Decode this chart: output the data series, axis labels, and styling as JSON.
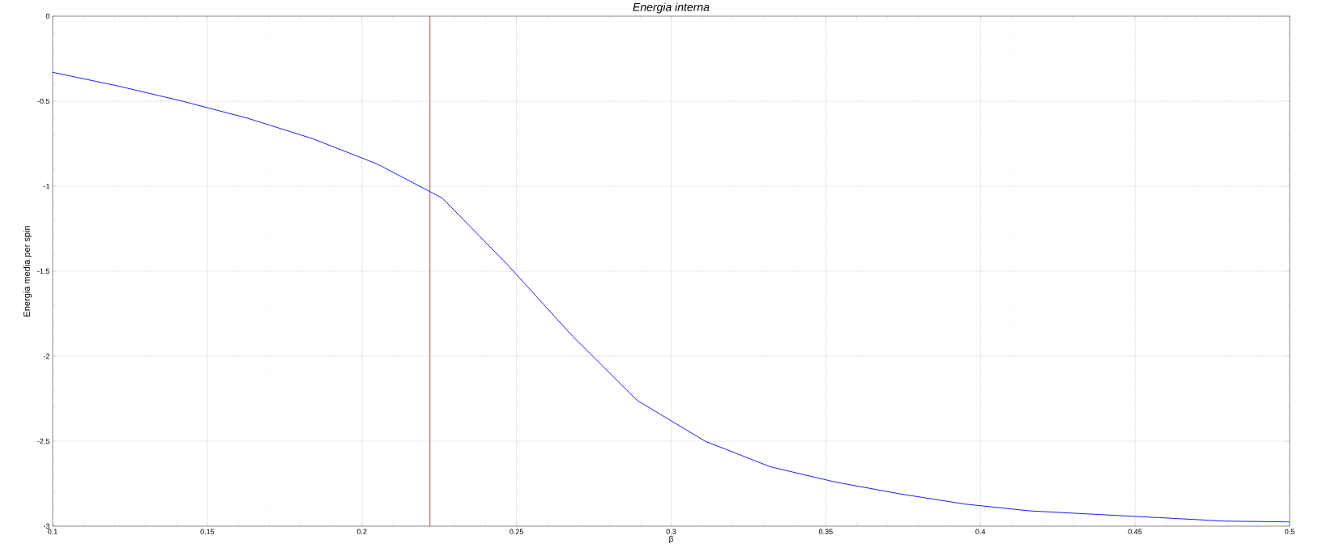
{
  "chart_data": {
    "type": "line",
    "title": "Energia interna",
    "xlabel": "β",
    "ylabel": "Energia media per spin",
    "x": [
      0.1,
      0.121,
      0.142,
      0.163,
      0.184,
      0.205,
      0.226,
      0.247,
      0.268,
      0.289,
      0.311,
      0.332,
      0.353,
      0.374,
      0.395,
      0.416,
      0.437,
      0.458,
      0.479,
      0.5
    ],
    "series": [
      {
        "color": "#0000ff",
        "values": [
          -0.33,
          -0.41,
          -0.5,
          -0.6,
          -0.72,
          -0.87,
          -1.07,
          -1.46,
          -1.88,
          -2.26,
          -2.5,
          -2.65,
          -2.74,
          -2.81,
          -2.87,
          -2.91,
          -2.93,
          -2.95,
          -2.97,
          -2.975
        ]
      }
    ],
    "xlim": [
      0.1,
      0.5
    ],
    "xticks": [
      0.1,
      0.15,
      0.2,
      0.25,
      0.3,
      0.35,
      0.4,
      0.45,
      0.5
    ],
    "ylim": [
      -3,
      0
    ],
    "yticks": [
      -3,
      -2.5,
      -2,
      -1.5,
      -1,
      -0.5,
      0
    ],
    "ref_lines": [
      {
        "axis": "x",
        "value": 0.222,
        "color": "#c0504d"
      }
    ],
    "grid": true,
    "marker": "none",
    "line_style": "solid"
  }
}
